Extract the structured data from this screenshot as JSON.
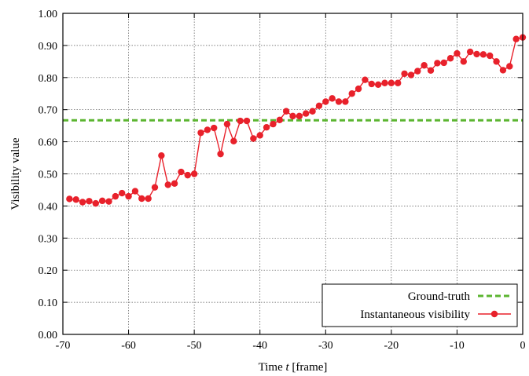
{
  "chart_data": {
    "type": "line",
    "title": "",
    "xlabel_prefix": "Time ",
    "xlabel_var": "t",
    "xlabel_suffix": " [frame]",
    "ylabel": "Visibility value",
    "xlim": [
      -70,
      0
    ],
    "ylim": [
      0.0,
      1.0
    ],
    "xticks": [
      -70,
      -60,
      -50,
      -40,
      -30,
      -20,
      -10,
      0
    ],
    "xtick_labels": [
      "-70",
      "-60",
      "-50",
      "-40",
      "-30",
      "-20",
      "-10",
      "0"
    ],
    "yticks": [
      0.0,
      0.1,
      0.2,
      0.3,
      0.4,
      0.5,
      0.6,
      0.7,
      0.8,
      0.9,
      1.0
    ],
    "ytick_labels": [
      "0.00",
      "0.10",
      "0.20",
      "0.30",
      "0.40",
      "0.50",
      "0.60",
      "0.70",
      "0.80",
      "0.90",
      "1.00"
    ],
    "grid": true,
    "legend_position": "bottom-right",
    "series": [
      {
        "name": "Ground-truth",
        "style": "dashed",
        "color": "#5cb531",
        "x": [
          -70,
          0
        ],
        "y": [
          0.667,
          0.667
        ]
      },
      {
        "name": "Instantaneous visibility",
        "style": "line-with-markers",
        "color": "#e8212b",
        "x": [
          -69,
          -68,
          -67,
          -66,
          -65,
          -64,
          -63,
          -62,
          -61,
          -60,
          -59,
          -58,
          -57,
          -56,
          -55,
          -54,
          -53,
          -52,
          -51,
          -50,
          -49,
          -48,
          -47,
          -46,
          -45,
          -44,
          -43,
          -42,
          -41,
          -40,
          -39,
          -38,
          -37,
          -36,
          -35,
          -34,
          -33,
          -32,
          -31,
          -30,
          -29,
          -28,
          -27,
          -26,
          -25,
          -24,
          -23,
          -22,
          -21,
          -20,
          -19,
          -18,
          -17,
          -16,
          -15,
          -14,
          -13,
          -12,
          -11,
          -10,
          -9,
          -8,
          -7,
          -6,
          -5,
          -4,
          -3,
          -2,
          -1,
          0
        ],
        "y": [
          0.422,
          0.42,
          0.412,
          0.415,
          0.408,
          0.416,
          0.414,
          0.43,
          0.44,
          0.43,
          0.446,
          0.423,
          0.423,
          0.458,
          0.557,
          0.466,
          0.47,
          0.506,
          0.496,
          0.5,
          0.628,
          0.637,
          0.643,
          0.562,
          0.655,
          0.602,
          0.665,
          0.665,
          0.61,
          0.62,
          0.645,
          0.655,
          0.668,
          0.695,
          0.68,
          0.68,
          0.688,
          0.695,
          0.712,
          0.725,
          0.735,
          0.725,
          0.725,
          0.75,
          0.765,
          0.793,
          0.78,
          0.778,
          0.783,
          0.783,
          0.783,
          0.812,
          0.808,
          0.82,
          0.838,
          0.822,
          0.845,
          0.846,
          0.86,
          0.875,
          0.85,
          0.88,
          0.873,
          0.872,
          0.868,
          0.85,
          0.823,
          0.835,
          0.92,
          0.925
        ]
      }
    ]
  }
}
